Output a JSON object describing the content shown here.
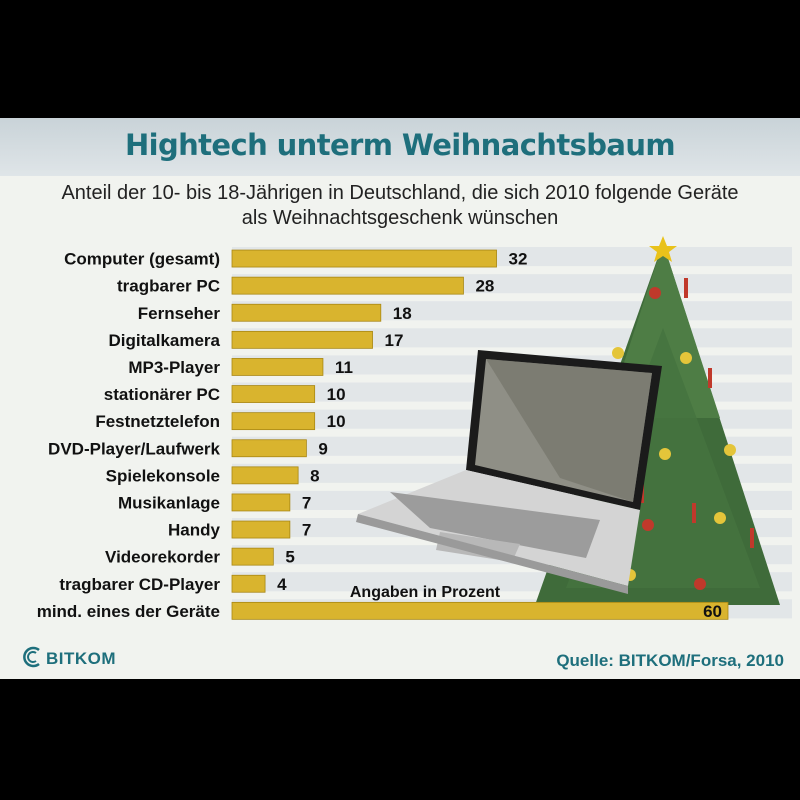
{
  "title": "Hightech unterm Weihnachtsbaum",
  "subtitle_line1": "Anteil der 10- bis 18-Jährigen in Deutschland, die sich 2010 folgende Geräte",
  "subtitle_line2": "als Weihnachtsgeschenk wünschen",
  "unit_note": "Angaben in Prozent",
  "source": "Quelle: BITKOM/Forsa, 2010",
  "logo_text": "BITKOM",
  "colors": {
    "bar": "#d9b42e",
    "bar_edge": "#a88714",
    "title": "#1e6f7c",
    "stripe": "#e2e6e8"
  },
  "chart_data": {
    "type": "bar",
    "orientation": "horizontal",
    "categories": [
      "Computer (gesamt)",
      "tragbarer PC",
      "Fernseher",
      "Digitalkamera",
      "MP3-Player",
      "stationärer PC",
      "Festnetztelefon",
      "DVD-Player/Laufwerk",
      "Spielekonsole",
      "Musikanlage",
      "Handy",
      "Videorekorder",
      "tragbarer CD-Player",
      "mind. eines der Geräte"
    ],
    "values": [
      32,
      28,
      18,
      17,
      11,
      10,
      10,
      9,
      8,
      7,
      7,
      5,
      4,
      60
    ],
    "value_labels": [
      "32",
      "28",
      "18",
      "17",
      "11",
      "10",
      "10",
      "9",
      "8",
      "7",
      "7",
      "5",
      "4",
      "60"
    ],
    "title": "Hightech unterm Weihnachtsbaum",
    "xlabel": "Angaben in Prozent",
    "xlim": [
      0,
      60
    ],
    "grid": false,
    "legend": "none"
  }
}
